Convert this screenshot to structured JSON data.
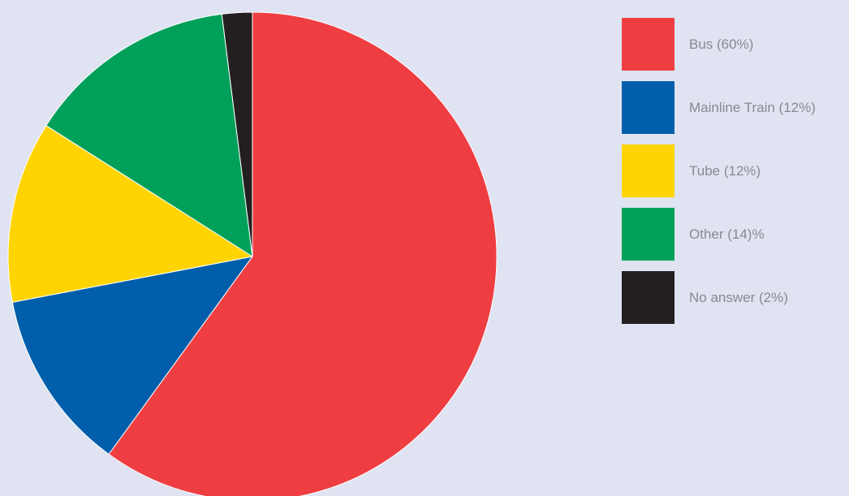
{
  "chart_data": {
    "type": "pie",
    "categories": [
      "Bus (60%)",
      "Mainline Train (12%)",
      "Tube (12%)",
      "Other (14)%",
      "No answer (2%)"
    ],
    "values": [
      60,
      12,
      12,
      14,
      2
    ],
    "colors": [
      "#ef3e42",
      "#005eab",
      "#ffd400",
      "#00a05a",
      "#231f20"
    ],
    "start": "12 o'clock",
    "direction": "clockwise",
    "legend_position": "right",
    "title": "",
    "background_color": "#dfe3f2",
    "slice_border_color": "#ffffff"
  }
}
